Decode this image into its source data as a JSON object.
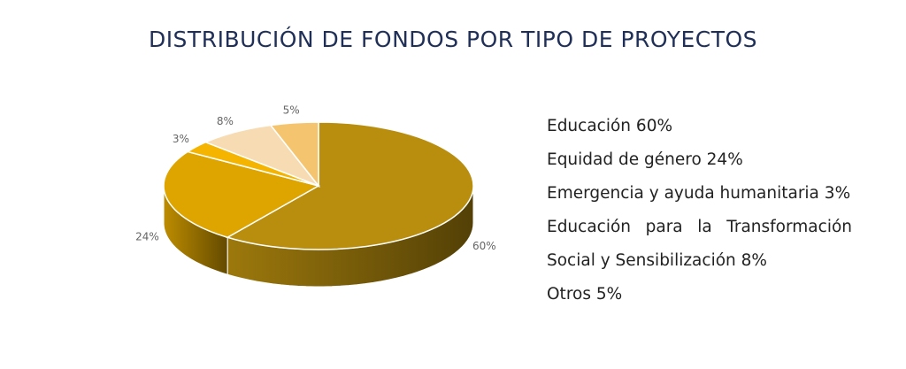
{
  "chart_data": {
    "type": "pie3d",
    "title": "DISTRIBUCIÓN DE FONDOS POR TIPO DE PROYECTOS",
    "categories": [
      "Educación",
      "Equidad de género",
      "Emergencia y ayuda humanitaria",
      "Educación para la Transformación Social y Sensibilización",
      "Otros"
    ],
    "values": [
      60,
      24,
      3,
      8,
      5
    ],
    "value_labels": [
      "60%",
      "24%",
      "3%",
      "8%",
      "5%"
    ],
    "colors": [
      "#b98e0e",
      "#dea500",
      "#f4b400",
      "#f7dbb2",
      "#f5c46e"
    ]
  }
}
